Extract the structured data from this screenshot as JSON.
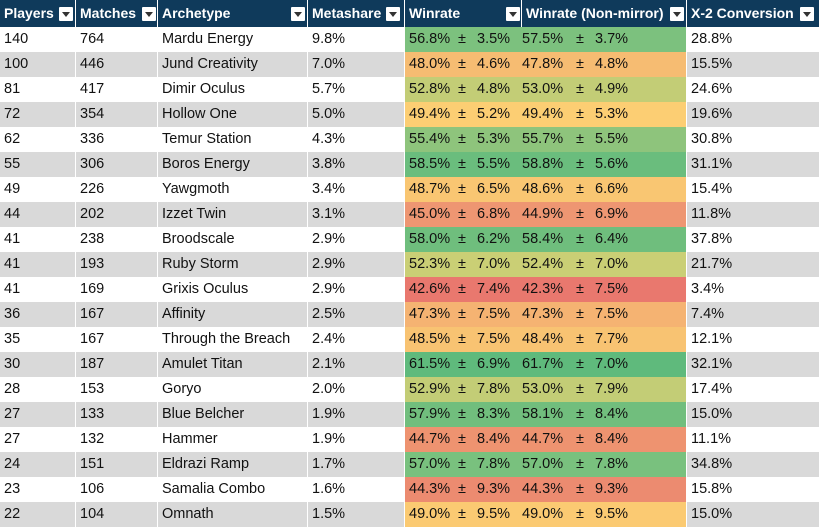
{
  "columns": [
    "Players",
    "Matches",
    "Archetype",
    "Metashare",
    "Winrate",
    "Winrate (Non-mirror)",
    "X-2 Conversion"
  ],
  "pm_symbol": "±",
  "rows": [
    {
      "players": "140",
      "matches": "764",
      "archetype": "Mardu Energy",
      "metashare": "9.8%",
      "wr": "56.8%",
      "wr_ci": "3.5%",
      "nm": "57.5%",
      "nm_ci": "3.7%",
      "x2": "28.8%",
      "color": "#7cc17e"
    },
    {
      "players": "100",
      "matches": "446",
      "archetype": "Jund Creativity",
      "metashare": "7.0%",
      "wr": "48.0%",
      "wr_ci": "4.6%",
      "nm": "47.8%",
      "nm_ci": "4.8%",
      "x2": "15.5%",
      "color": "#f6bc72"
    },
    {
      "players": "81",
      "matches": "417",
      "archetype": "Dimir Oculus",
      "metashare": "5.7%",
      "wr": "52.8%",
      "wr_ci": "4.8%",
      "nm": "53.0%",
      "nm_ci": "4.9%",
      "x2": "24.6%",
      "color": "#c3cd76"
    },
    {
      "players": "72",
      "matches": "354",
      "archetype": "Hollow One",
      "metashare": "5.0%",
      "wr": "49.4%",
      "wr_ci": "5.2%",
      "nm": "49.4%",
      "nm_ci": "5.3%",
      "x2": "19.6%",
      "color": "#fcce73"
    },
    {
      "players": "62",
      "matches": "336",
      "archetype": "Temur Station",
      "metashare": "4.3%",
      "wr": "55.4%",
      "wr_ci": "5.3%",
      "nm": "55.7%",
      "nm_ci": "5.5%",
      "x2": "30.8%",
      "color": "#8ec47c"
    },
    {
      "players": "55",
      "matches": "306",
      "archetype": "Boros Energy",
      "metashare": "3.8%",
      "wr": "58.5%",
      "wr_ci": "5.5%",
      "nm": "58.8%",
      "nm_ci": "5.6%",
      "x2": "31.1%",
      "color": "#6abd7d"
    },
    {
      "players": "49",
      "matches": "226",
      "archetype": "Yawgmoth",
      "metashare": "3.4%",
      "wr": "48.7%",
      "wr_ci": "6.5%",
      "nm": "48.6%",
      "nm_ci": "6.6%",
      "x2": "15.4%",
      "color": "#f9c672"
    },
    {
      "players": "44",
      "matches": "202",
      "archetype": "Izzet Twin",
      "metashare": "3.1%",
      "wr": "45.0%",
      "wr_ci": "6.8%",
      "nm": "44.9%",
      "nm_ci": "6.9%",
      "x2": "11.8%",
      "color": "#ee9672"
    },
    {
      "players": "41",
      "matches": "238",
      "archetype": "Broodscale",
      "metashare": "2.9%",
      "wr": "58.0%",
      "wr_ci": "6.2%",
      "nm": "58.4%",
      "nm_ci": "6.4%",
      "x2": "37.8%",
      "color": "#6fbe7d"
    },
    {
      "players": "41",
      "matches": "193",
      "archetype": "Ruby Storm",
      "metashare": "2.9%",
      "wr": "52.3%",
      "wr_ci": "7.0%",
      "nm": "52.4%",
      "nm_ci": "7.0%",
      "x2": "21.7%",
      "color": "#cacf75"
    },
    {
      "players": "41",
      "matches": "169",
      "archetype": "Grixis Oculus",
      "metashare": "2.9%",
      "wr": "42.6%",
      "wr_ci": "7.4%",
      "nm": "42.3%",
      "nm_ci": "7.5%",
      "x2": "3.4%",
      "color": "#e9786e"
    },
    {
      "players": "36",
      "matches": "167",
      "archetype": "Affinity",
      "metashare": "2.5%",
      "wr": "47.3%",
      "wr_ci": "7.5%",
      "nm": "47.3%",
      "nm_ci": "7.5%",
      "x2": "7.4%",
      "color": "#f5b372"
    },
    {
      "players": "35",
      "matches": "167",
      "archetype": "Through the Breach",
      "metashare": "2.4%",
      "wr": "48.5%",
      "wr_ci": "7.5%",
      "nm": "48.4%",
      "nm_ci": "7.7%",
      "x2": "12.1%",
      "color": "#f8c372"
    },
    {
      "players": "30",
      "matches": "187",
      "archetype": "Amulet Titan",
      "metashare": "2.1%",
      "wr": "61.5%",
      "wr_ci": "6.9%",
      "nm": "61.7%",
      "nm_ci": "7.0%",
      "x2": "32.1%",
      "color": "#5fba7c"
    },
    {
      "players": "28",
      "matches": "153",
      "archetype": "Goryo",
      "metashare": "2.0%",
      "wr": "52.9%",
      "wr_ci": "7.8%",
      "nm": "53.0%",
      "nm_ci": "7.9%",
      "x2": "17.4%",
      "color": "#c3cd76"
    },
    {
      "players": "27",
      "matches": "133",
      "archetype": "Blue Belcher",
      "metashare": "1.9%",
      "wr": "57.9%",
      "wr_ci": "8.3%",
      "nm": "58.1%",
      "nm_ci": "8.4%",
      "x2": "15.0%",
      "color": "#71be7d"
    },
    {
      "players": "27",
      "matches": "132",
      "archetype": "Hammer",
      "metashare": "1.9%",
      "wr": "44.7%",
      "wr_ci": "8.4%",
      "nm": "44.7%",
      "nm_ci": "8.4%",
      "x2": "11.1%",
      "color": "#ee9370"
    },
    {
      "players": "24",
      "matches": "151",
      "archetype": "Eldrazi Ramp",
      "metashare": "1.7%",
      "wr": "57.0%",
      "wr_ci": "7.8%",
      "nm": "57.0%",
      "nm_ci": "7.8%",
      "x2": "34.8%",
      "color": "#79c17e"
    },
    {
      "players": "23",
      "matches": "106",
      "archetype": "Samalia Combo",
      "metashare": "1.6%",
      "wr": "44.3%",
      "wr_ci": "9.3%",
      "nm": "44.3%",
      "nm_ci": "9.3%",
      "x2": "15.8%",
      "color": "#ec8b70"
    },
    {
      "players": "22",
      "matches": "104",
      "archetype": "Omnath",
      "metashare": "1.5%",
      "wr": "49.0%",
      "wr_ci": "9.5%",
      "nm": "49.0%",
      "nm_ci": "9.5%",
      "x2": "15.0%",
      "color": "#fbca72"
    }
  ]
}
